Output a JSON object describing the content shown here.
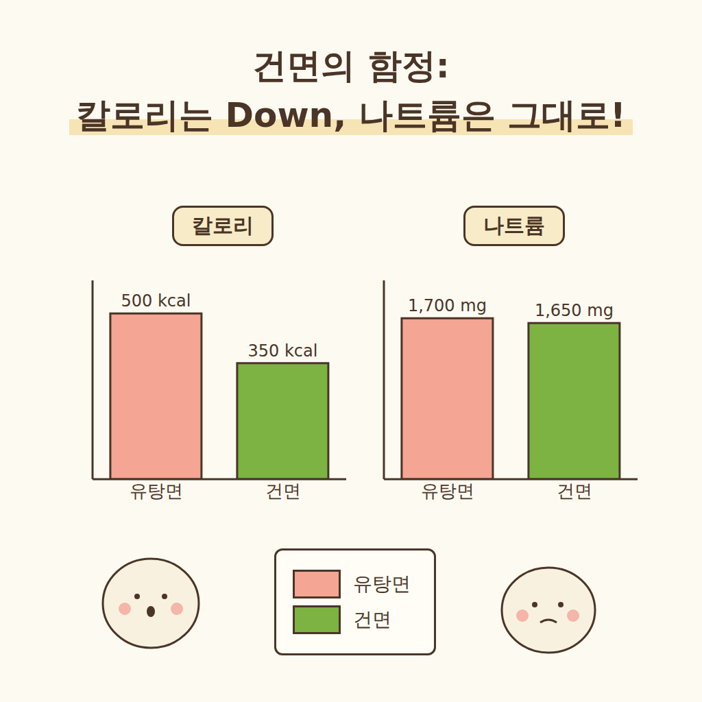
{
  "title": "건면의 함정: 칼로리는 Down, 나트륨은 그대로!",
  "legend": "bottom",
  "chart_data": [
    {
      "type": "bar",
      "title": "칼로리",
      "categories": [
        "유탕면",
        "건면"
      ],
      "values": [
        500,
        350
      ],
      "value_labels": [
        "500 kcal",
        "350 kcal"
      ],
      "colors": [
        "#f4a593",
        "#7cb342"
      ],
      "ylim": [
        0,
        600
      ],
      "data_labels": true,
      "tick_labels": "x",
      "grid": false
    },
    {
      "type": "bar",
      "title": "나트륨",
      "categories": [
        "유탕면",
        "건면"
      ],
      "values": [
        1700,
        1650
      ],
      "value_labels": [
        "1,700 mg",
        "1,650 mg"
      ],
      "colors": [
        "#f4a593",
        "#7cb342"
      ],
      "ylim": [
        0,
        2100
      ],
      "data_labels": true,
      "tick_labels": "x",
      "grid": false
    }
  ]
}
